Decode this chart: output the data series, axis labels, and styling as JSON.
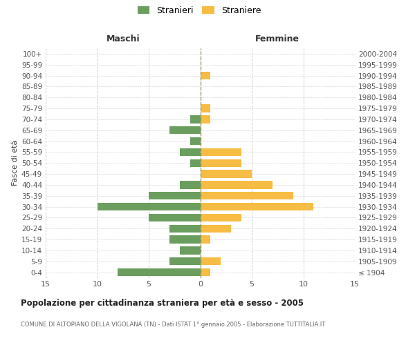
{
  "age_groups": [
    "100+",
    "95-99",
    "90-94",
    "85-89",
    "80-84",
    "75-79",
    "70-74",
    "65-69",
    "60-64",
    "55-59",
    "50-54",
    "45-49",
    "40-44",
    "35-39",
    "30-34",
    "25-29",
    "20-24",
    "15-19",
    "10-14",
    "5-9",
    "0-4"
  ],
  "birth_years": [
    "≤ 1904",
    "1905-1909",
    "1910-1914",
    "1915-1919",
    "1920-1924",
    "1925-1929",
    "1930-1934",
    "1935-1939",
    "1940-1944",
    "1945-1949",
    "1950-1954",
    "1955-1959",
    "1960-1964",
    "1965-1969",
    "1970-1974",
    "1975-1979",
    "1980-1984",
    "1985-1989",
    "1990-1994",
    "1995-1999",
    "2000-2004"
  ],
  "males": [
    0,
    0,
    0,
    0,
    0,
    0,
    1,
    3,
    1,
    2,
    1,
    0,
    2,
    5,
    10,
    5,
    3,
    3,
    2,
    3,
    8
  ],
  "females": [
    0,
    0,
    1,
    0,
    0,
    1,
    1,
    0,
    0,
    4,
    4,
    5,
    7,
    9,
    11,
    4,
    3,
    1,
    0,
    2,
    1
  ],
  "male_color": "#6b9e5e",
  "female_color": "#f6bc43",
  "title": "Popolazione per cittadinanza straniera per età e sesso - 2005",
  "subtitle": "COMUNE DI ALTOPIANO DELLA VIGOLANA (TN) - Dati ISTAT 1° gennaio 2005 - Elaborazione TUTTITALIA.IT",
  "ylabel_left": "Fasce di età",
  "header_left": "Maschi",
  "header_right": "Femmine",
  "legend_males": "Stranieri",
  "legend_females": "Straniere",
  "xlim": 15,
  "bg_color": "#ffffff",
  "grid_color": "#cccccc",
  "center_line_color": "#aaaaaa"
}
